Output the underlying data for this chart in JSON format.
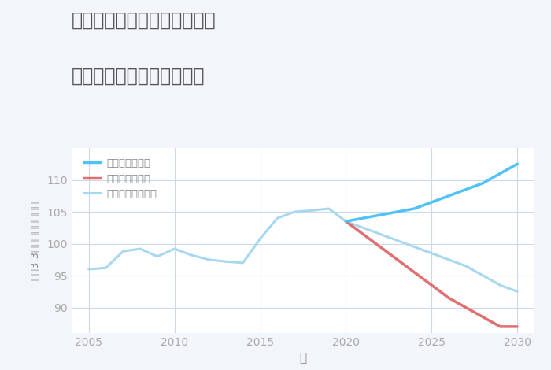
{
  "title_line1": "岐阜県高山市国府町三日町の",
  "title_line2": "中古マンションの価格推移",
  "xlabel": "年",
  "ylabel": "坪（3.3㎡）単価（万円）",
  "background_color": "#f2f5f9",
  "plot_bg_color": "#ffffff",
  "grid_color": "#cdd8e8",
  "historical_years": [
    2005,
    2006,
    2007,
    2008,
    2009,
    2010,
    2011,
    2012,
    2013,
    2014,
    2015,
    2016,
    2017,
    2018,
    2019,
    2020
  ],
  "historical_values": [
    96.0,
    96.2,
    98.8,
    99.2,
    98.0,
    99.2,
    98.2,
    97.5,
    97.2,
    97.0,
    100.8,
    104.0,
    105.0,
    105.2,
    105.5,
    103.5
  ],
  "good_years": [
    2020,
    2021,
    2022,
    2023,
    2024,
    2025,
    2026,
    2027,
    2028,
    2029,
    2030
  ],
  "good_values": [
    103.5,
    104.0,
    104.5,
    105.0,
    105.5,
    106.5,
    107.5,
    108.5,
    109.5,
    111.0,
    112.5
  ],
  "bad_years": [
    2020,
    2021,
    2022,
    2023,
    2024,
    2025,
    2026,
    2027,
    2028,
    2029,
    2030
  ],
  "bad_values": [
    103.5,
    101.5,
    99.5,
    97.5,
    95.5,
    93.5,
    91.5,
    90.0,
    88.5,
    87.0,
    87.0
  ],
  "normal_years": [
    2020,
    2021,
    2022,
    2023,
    2024,
    2025,
    2026,
    2027,
    2028,
    2029,
    2030
  ],
  "normal_values": [
    103.5,
    102.5,
    101.5,
    100.5,
    99.5,
    98.5,
    97.5,
    96.5,
    95.0,
    93.5,
    92.5
  ],
  "good_color": "#4fc3f7",
  "bad_color": "#e07070",
  "normal_color": "#a8d8f0",
  "historical_color": "#a8d8f0",
  "ylim": [
    86,
    115
  ],
  "xlim": [
    2004,
    2031
  ],
  "yticks": [
    90,
    95,
    100,
    105,
    110
  ],
  "xticks": [
    2005,
    2010,
    2015,
    2020,
    2025,
    2030
  ],
  "legend_labels": [
    "グッドシナリオ",
    "バッドシナリオ",
    "ノーマルシナリオ"
  ],
  "title_color": "#555555",
  "title_fontsize": 17,
  "axis_label_color": "#888888",
  "tick_color": "#aaaaaa"
}
